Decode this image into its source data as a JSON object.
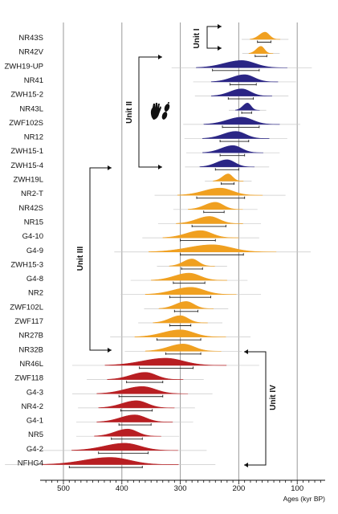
{
  "chart_data": {
    "type": "density-ridge",
    "title": "",
    "xlabel": "Ages (kyr BP)",
    "ylabel": "",
    "x_axis": {
      "min": 50,
      "max": 540,
      "reversed": true,
      "ticks": [
        500,
        400,
        300,
        200,
        100
      ],
      "grid": true
    },
    "colors": {
      "orange": "#F0A020",
      "blue": "#2A2585",
      "red": "#B81E22"
    },
    "samples": [
      {
        "name": "NR43S",
        "color": "orange",
        "peak": 155,
        "spread": 10,
        "bar": [
          145,
          168
        ]
      },
      {
        "name": "NR42V",
        "color": "orange",
        "peak": 162,
        "spread": 8,
        "bar": [
          152,
          172
        ]
      },
      {
        "name": "ZWH19-UP",
        "color": "blue",
        "peak": 195,
        "spread": 30,
        "bar": [
          165,
          245
        ]
      },
      {
        "name": "NR41",
        "color": "blue",
        "peak": 190,
        "spread": 22,
        "bar": [
          170,
          215
        ]
      },
      {
        "name": "ZWH15-2",
        "color": "blue",
        "peak": 195,
        "spread": 20,
        "bar": [
          175,
          218
        ]
      },
      {
        "name": "NR43L",
        "color": "blue",
        "peak": 185,
        "spread": 8,
        "bar": [
          178,
          195
        ]
      },
      {
        "name": "ZWF102S",
        "color": "blue",
        "peak": 195,
        "spread": 25,
        "bar": [
          165,
          228
        ]
      },
      {
        "name": "NR12",
        "color": "blue",
        "peak": 205,
        "spread": 22,
        "bar": [
          183,
          232
        ]
      },
      {
        "name": "ZWH15-1",
        "color": "blue",
        "peak": 210,
        "spread": 20,
        "bar": [
          190,
          232
        ]
      },
      {
        "name": "ZWH15-4",
        "color": "blue",
        "peak": 220,
        "spread": 18,
        "bar": [
          200,
          240
        ]
      },
      {
        "name": "ZWH19L",
        "color": "orange",
        "peak": 218,
        "spread": 10,
        "bar": [
          208,
          230
        ]
      },
      {
        "name": "NR2-T",
        "color": "orange",
        "peak": 232,
        "spread": 28,
        "bar": [
          190,
          272
        ]
      },
      {
        "name": "NR42S",
        "color": "orange",
        "peak": 240,
        "spread": 18,
        "bar": [
          225,
          260
        ]
      },
      {
        "name": "NR15",
        "color": "orange",
        "peak": 250,
        "spread": 22,
        "bar": [
          222,
          280
        ]
      },
      {
        "name": "G4-10",
        "color": "orange",
        "peak": 265,
        "spread": 25,
        "bar": [
          240,
          300
        ]
      },
      {
        "name": "G4-9",
        "color": "orange",
        "peak": 245,
        "spread": 42,
        "bar": [
          192,
          300
        ]
      },
      {
        "name": "ZWH15-3",
        "color": "orange",
        "peak": 280,
        "spread": 15,
        "bar": [
          262,
          298
        ]
      },
      {
        "name": "G4-8",
        "color": "orange",
        "peak": 285,
        "spread": 25,
        "bar": [
          258,
          312
        ]
      },
      {
        "name": "NR2",
        "color": "orange",
        "peak": 282,
        "spread": 30,
        "bar": [
          248,
          318
        ]
      },
      {
        "name": "ZWF102L",
        "color": "orange",
        "peak": 290,
        "spread": 18,
        "bar": [
          270,
          310
        ]
      },
      {
        "name": "ZWF117",
        "color": "orange",
        "peak": 300,
        "spread": 18,
        "bar": [
          282,
          318
        ]
      },
      {
        "name": "NR27B",
        "color": "orange",
        "peak": 300,
        "spread": 30,
        "bar": [
          265,
          340
        ]
      },
      {
        "name": "NR32B",
        "color": "orange",
        "peak": 295,
        "spread": 25,
        "bar": [
          265,
          325
        ]
      },
      {
        "name": "NR46L",
        "color": "red",
        "peak": 325,
        "spread": 40,
        "bar": [
          278,
          370
        ]
      },
      {
        "name": "ZWF118",
        "color": "red",
        "peak": 360,
        "spread": 25,
        "bar": [
          330,
          392
        ]
      },
      {
        "name": "G4-3",
        "color": "red",
        "peak": 365,
        "spread": 30,
        "bar": [
          330,
          405
        ]
      },
      {
        "name": "NR4-2",
        "color": "red",
        "peak": 375,
        "spread": 25,
        "bar": [
          348,
          402
        ]
      },
      {
        "name": "G4-1",
        "color": "red",
        "peak": 378,
        "spread": 25,
        "bar": [
          350,
          405
        ]
      },
      {
        "name": "NR5",
        "color": "red",
        "peak": 390,
        "spread": 22,
        "bar": [
          365,
          418
        ]
      },
      {
        "name": "G4-2",
        "color": "red",
        "peak": 395,
        "spread": 35,
        "bar": [
          355,
          440
        ]
      },
      {
        "name": "NFHG4",
        "color": "red",
        "peak": 420,
        "spread": 45,
        "bar": [
          365,
          490
        ]
      }
    ],
    "annotations": [
      {
        "label": "Unit I",
        "from": "NR43S",
        "to": "NR42V"
      },
      {
        "label": "Unit II",
        "from": "ZWH19-UP",
        "to": "ZWH15-4"
      },
      {
        "label": "Unit III",
        "from": "ZWH15-4",
        "to": "NR32B"
      },
      {
        "label": "Unit IV",
        "from": "NR32B",
        "to": "NFHG4"
      }
    ]
  }
}
